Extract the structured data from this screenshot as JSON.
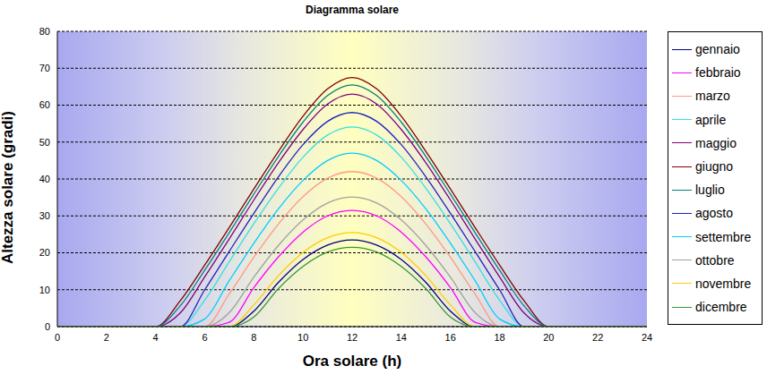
{
  "chart_data": {
    "type": "line",
    "title": "Diagramma solare",
    "x_label": "Ora solare (h)",
    "y_label": "Altezza solare (gradi)",
    "x": [
      0,
      1,
      2,
      3,
      4,
      5,
      6,
      7,
      8,
      9,
      10,
      11,
      12,
      13,
      14,
      15,
      16,
      17,
      18,
      19,
      20,
      21,
      22,
      23,
      24
    ],
    "xlim": [
      0,
      24
    ],
    "xticks": [
      0,
      2,
      4,
      6,
      8,
      10,
      12,
      14,
      16,
      18,
      20,
      22,
      24
    ],
    "ylim": [
      0,
      80
    ],
    "yticks": [
      0,
      10,
      20,
      30,
      40,
      50,
      60,
      70,
      80
    ],
    "grid": true,
    "legend": "right",
    "series": [
      {
        "name": "gennaio",
        "color": "#000080",
        "values": [
          0,
          0,
          0,
          0,
          0,
          0,
          0,
          0,
          4.2,
          12,
          18.2,
          22.1,
          23.5,
          22.1,
          18.2,
          12,
          4.2,
          0,
          0,
          0,
          0,
          0,
          0,
          0,
          0
        ]
      },
      {
        "name": "febbraio",
        "color": "#ff00ff",
        "values": [
          0,
          0,
          0,
          0,
          0,
          0,
          0,
          1.2,
          10.6,
          18.9,
          25.6,
          30,
          31.5,
          30,
          25.6,
          18.9,
          10.6,
          1.2,
          0,
          0,
          0,
          0,
          0,
          0,
          0
        ]
      },
      {
        "name": "marzo",
        "color": "#ff9980",
        "values": [
          0,
          0,
          0,
          0,
          0,
          0,
          0,
          8.9,
          18.8,
          27.8,
          35.2,
          40.2,
          42,
          40.2,
          35.2,
          27.8,
          18.8,
          8.9,
          0,
          0,
          0,
          0,
          0,
          0,
          0
        ]
      },
      {
        "name": "aprile",
        "color": "#33e0e0",
        "values": [
          0,
          0,
          0,
          0,
          0,
          0,
          7.2,
          17.6,
          27.9,
          37.5,
          45.9,
          51.9,
          54.1,
          51.9,
          45.9,
          37.5,
          27.9,
          17.6,
          7.2,
          0,
          0,
          0,
          0,
          0,
          0
        ]
      },
      {
        "name": "maggio",
        "color": "#800080",
        "values": [
          0,
          0,
          0,
          0,
          0,
          3.7,
          13.5,
          23.8,
          34.3,
          44.4,
          53.4,
          60.3,
          63,
          60.3,
          53.4,
          44.4,
          34.3,
          23.8,
          13.5,
          3.7,
          0,
          0,
          0,
          0,
          0
        ]
      },
      {
        "name": "giugno",
        "color": "#800000",
        "values": [
          0,
          0,
          0,
          0,
          0,
          7,
          16.7,
          26.9,
          37.3,
          47.5,
          57,
          64.4,
          67.5,
          64.4,
          57,
          47.5,
          37.3,
          26.9,
          16.7,
          7,
          0,
          0,
          0,
          0,
          0
        ]
      },
      {
        "name": "luglio",
        "color": "#008080",
        "values": [
          0,
          0,
          0,
          0,
          0,
          5.6,
          15.3,
          25.5,
          35.9,
          46.1,
          55.4,
          62.6,
          65.5,
          62.6,
          55.4,
          46.1,
          35.9,
          25.5,
          15.3,
          5.6,
          0,
          0,
          0,
          0,
          0
        ]
      },
      {
        "name": "agosto",
        "color": "#2020c0",
        "values": [
          0,
          0,
          0,
          0,
          0,
          0,
          10,
          20.4,
          30.7,
          40.6,
          49.3,
          55.6,
          58,
          55.6,
          49.3,
          40.6,
          30.7,
          20.4,
          10,
          0,
          0,
          0,
          0,
          0,
          0
        ]
      },
      {
        "name": "settembre",
        "color": "#00ccff",
        "values": [
          0,
          0,
          0,
          0,
          0,
          0,
          2.1,
          12.5,
          22.6,
          31.9,
          39.6,
          45,
          47,
          45,
          39.6,
          31.9,
          22.6,
          12.5,
          2.1,
          0,
          0,
          0,
          0,
          0,
          0
        ]
      },
      {
        "name": "ottobre",
        "color": "#a0a0a0",
        "values": [
          0,
          0,
          0,
          0,
          0,
          0,
          0,
          3.8,
          13.4,
          22,
          28.9,
          33.5,
          35.1,
          33.5,
          28.9,
          22,
          13.4,
          3.8,
          0,
          0,
          0,
          0,
          0,
          0,
          0
        ]
      },
      {
        "name": "novembre",
        "color": "#ffcc00",
        "values": [
          0,
          0,
          0,
          0,
          0,
          0,
          0,
          0,
          5.9,
          13.8,
          20.1,
          24.1,
          25.5,
          24.1,
          20.1,
          13.8,
          5.9,
          0,
          0,
          0,
          0,
          0,
          0,
          0,
          0
        ]
      },
      {
        "name": "dicembre",
        "color": "#339933",
        "values": [
          0,
          0,
          0,
          0,
          0,
          0,
          0,
          0,
          2.6,
          10.3,
          16.3,
          20.2,
          21.5,
          20.2,
          16.3,
          10.3,
          2.6,
          0,
          0,
          0,
          0,
          0,
          0,
          0,
          0
        ]
      }
    ]
  }
}
